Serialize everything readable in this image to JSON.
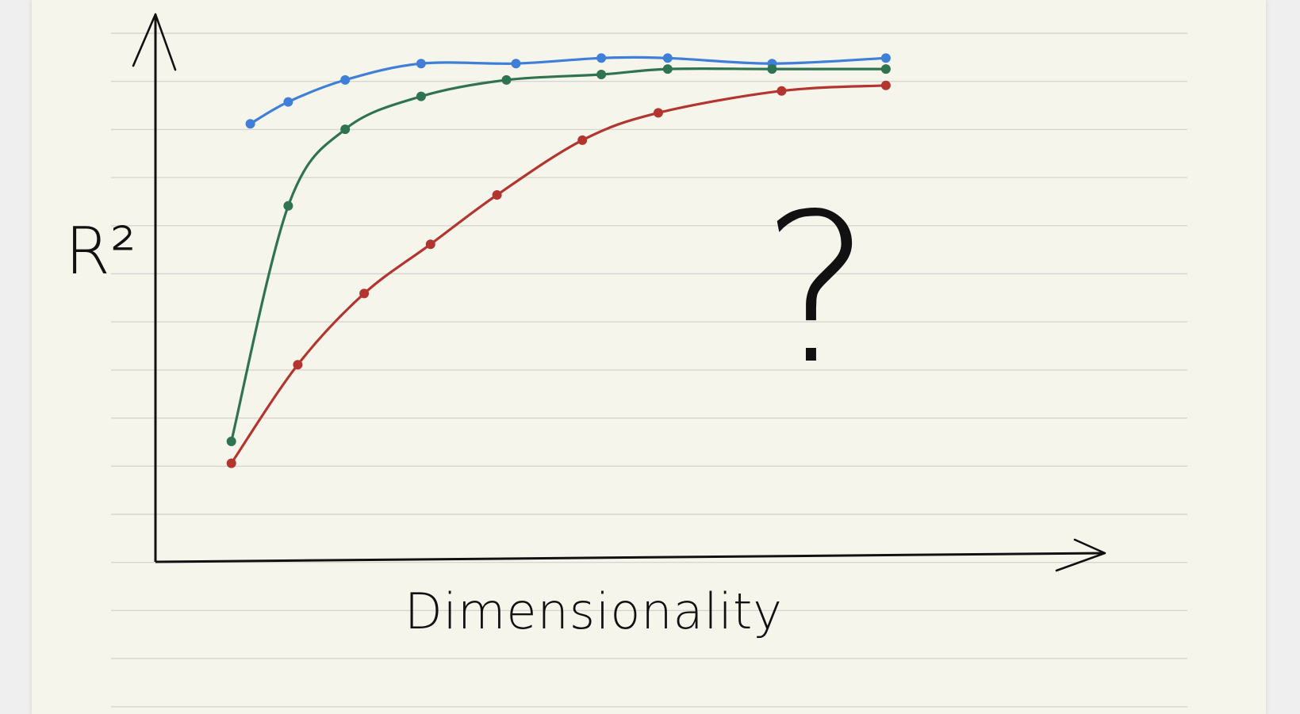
{
  "chart_data": {
    "type": "line",
    "title": "",
    "xlabel": "Dimensionality",
    "ylabel": "R²",
    "annotation": "?",
    "grid": "ruled notebook lines",
    "legend": "none",
    "xlim": [
      0,
      10
    ],
    "ylim": [
      0,
      1
    ],
    "series": [
      {
        "color": "#3f7fd8",
        "points": [
          [
            1.0,
            0.8
          ],
          [
            1.4,
            0.84
          ],
          [
            2.0,
            0.88
          ],
          [
            2.8,
            0.91
          ],
          [
            3.8,
            0.91
          ],
          [
            4.7,
            0.92
          ],
          [
            5.4,
            0.92
          ],
          [
            6.5,
            0.91
          ],
          [
            7.7,
            0.92
          ]
        ]
      },
      {
        "color": "#2f7350",
        "points": [
          [
            0.8,
            0.22
          ],
          [
            1.4,
            0.65
          ],
          [
            2.0,
            0.79
          ],
          [
            2.8,
            0.85
          ],
          [
            3.7,
            0.88
          ],
          [
            4.7,
            0.89
          ],
          [
            5.4,
            0.9
          ],
          [
            6.5,
            0.9
          ],
          [
            7.7,
            0.9
          ]
        ]
      },
      {
        "color": "#b2362f",
        "points": [
          [
            0.8,
            0.18
          ],
          [
            1.5,
            0.36
          ],
          [
            2.2,
            0.49
          ],
          [
            2.9,
            0.58
          ],
          [
            3.6,
            0.67
          ],
          [
            4.5,
            0.77
          ],
          [
            5.3,
            0.82
          ],
          [
            6.6,
            0.86
          ],
          [
            7.7,
            0.87
          ]
        ]
      }
    ]
  }
}
